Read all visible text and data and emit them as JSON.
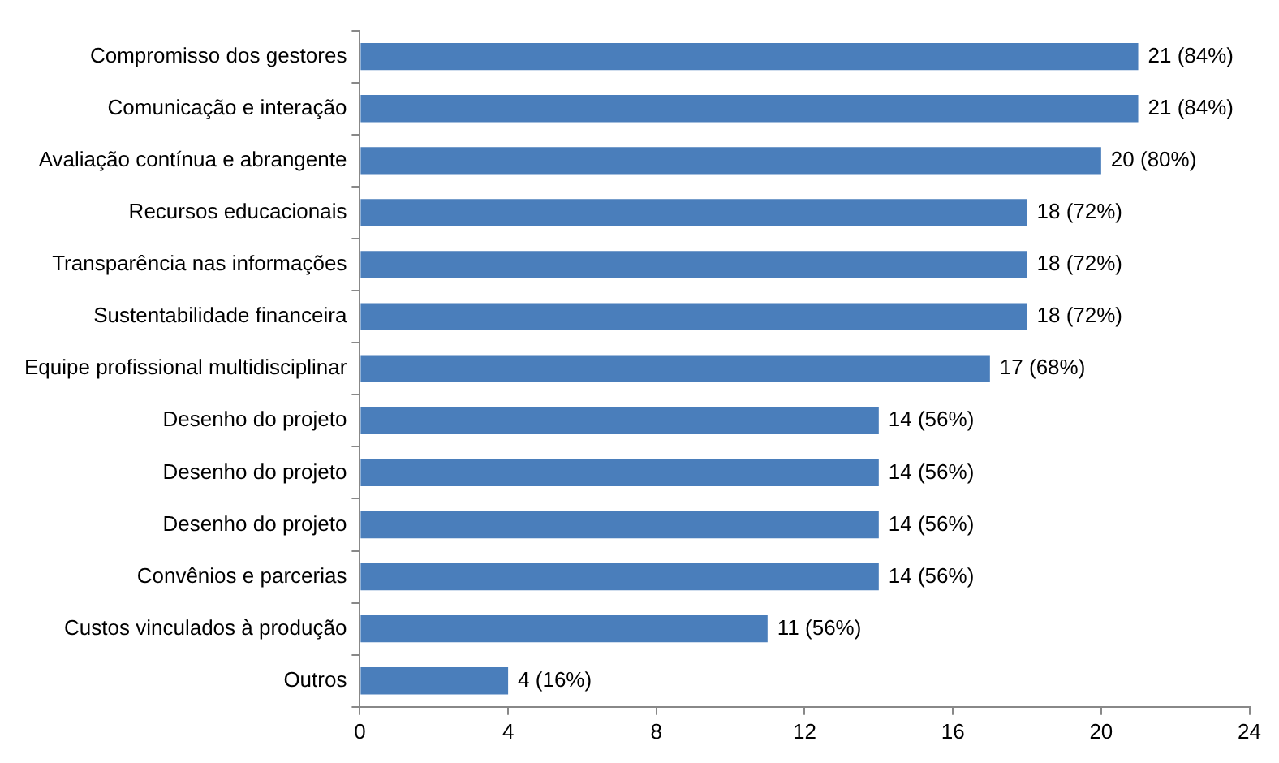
{
  "chart_data": {
    "type": "bar",
    "orientation": "horizontal",
    "categories": [
      "Compromisso dos gestores",
      "Comunicação e interação",
      "Avaliação contínua e abrangente",
      "Recursos educacionais",
      "Transparência nas informações",
      "Sustentabilidade financeira",
      "Equipe profissional multidisciplinar",
      "Desenho do projeto",
      "Desenho do projeto",
      "Desenho do projeto",
      "Convênios e parcerias",
      "Custos vinculados à produção",
      "Outros"
    ],
    "values": [
      21,
      21,
      20,
      18,
      18,
      18,
      17,
      14,
      14,
      14,
      14,
      11,
      4
    ],
    "value_labels": [
      "21 (84%)",
      "21 (84%)",
      "20 (80%)",
      "18 (72%)",
      "18 (72%)",
      "18 (72%)",
      "17 (68%)",
      "14 (56%)",
      "14 (56%)",
      "14 (56%)",
      "14 (56%)",
      "11 (56%)",
      "4 (16%)"
    ],
    "color": "#4a7ebb",
    "xlim": [
      0,
      24
    ],
    "xticks": [
      0,
      4,
      8,
      12,
      16,
      20,
      24
    ],
    "grid": false,
    "legend": false
  }
}
